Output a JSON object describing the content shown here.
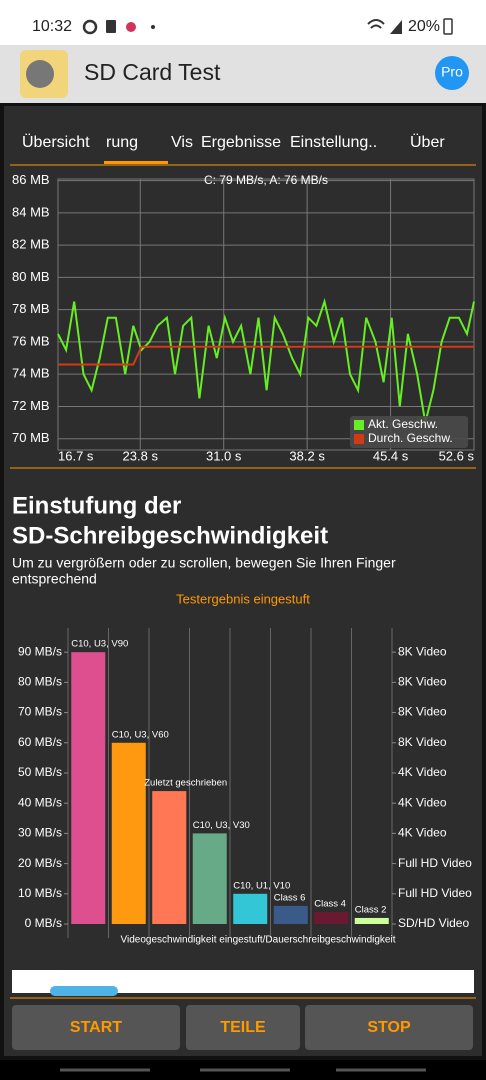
{
  "status_bar": {
    "time": "10:32",
    "battery": "20%"
  },
  "app_bar": {
    "title": "SD Card Test",
    "pro": "Pro"
  },
  "tabs": [
    "Übersicht",
    "rung",
    "Vis",
    "Ergebnisse",
    "Einstellung..",
    "Über"
  ],
  "section": {
    "heading": [
      "Einstufung der",
      "SD-Schreibgeschwindigkeit"
    ],
    "hint": [
      "Um zu vergrößern oder zu scrollen, bewegen Sie Ihren Finger",
      "entsprechend"
    ]
  },
  "buttons": [
    "START",
    "TEILE",
    "STOP"
  ],
  "chart_data": [
    {
      "type": "line",
      "annotation": "C: 79 MB/s, A: 76 MB/s",
      "x": [
        16.7,
        17.4,
        18.1,
        18.9,
        19.6,
        20.3,
        21.0,
        21.7,
        22.5,
        23.2,
        23.9,
        24.6,
        25.3,
        26.1,
        26.8,
        27.5,
        28.2,
        28.9,
        29.7,
        30.4,
        31.1,
        31.8,
        32.5,
        33.3,
        34.0,
        34.7,
        35.4,
        36.1,
        36.9,
        37.6,
        38.3,
        39.0,
        39.7,
        40.5,
        41.2,
        41.9,
        42.6,
        43.3,
        44.1,
        44.8,
        45.5,
        46.2,
        46.9,
        47.7,
        48.4,
        49.1,
        49.8,
        50.5,
        51.3,
        52.0,
        52.6
      ],
      "series": [
        {
          "name": "Akt. Geschw.",
          "color": "#66ee22",
          "values": [
            76.5,
            75.5,
            78.5,
            74,
            73,
            75,
            77.5,
            77.5,
            74,
            77,
            75.5,
            76,
            77,
            77.5,
            74,
            77,
            77.5,
            72.5,
            77,
            75,
            77.5,
            76,
            77,
            74,
            77.5,
            73,
            77.5,
            76.5,
            75,
            74,
            77.5,
            77,
            78.5,
            76,
            77.5,
            74,
            73,
            77.5,
            76,
            73.5,
            77.5,
            72,
            76.5,
            74,
            71,
            73,
            76,
            77.5,
            77.5,
            76.5,
            78.5
          ]
        },
        {
          "name": "Durch. Geschw.",
          "color": "#d23a16",
          "values": [
            74.6,
            74.6,
            74.6,
            74.6,
            74.6,
            74.6,
            74.6,
            74.6,
            74.6,
            74.6,
            75.7,
            75.7,
            75.7,
            75.7,
            75.7,
            75.7,
            75.7,
            75.7,
            75.7,
            75.7,
            75.7,
            75.7,
            75.7,
            75.7,
            75.7,
            75.7,
            75.7,
            75.7,
            75.7,
            75.7,
            75.7,
            75.7,
            75.7,
            75.7,
            75.7,
            75.7,
            75.7,
            75.7,
            75.7,
            75.7,
            75.7,
            75.7,
            75.7,
            75.7,
            75.7,
            75.7,
            75.7,
            75.7,
            75.7,
            75.7,
            75.7
          ]
        }
      ],
      "xlim": [
        16.7,
        52.6
      ],
      "xticks": [
        {
          "value": 16.7,
          "label": "16.7 s"
        },
        {
          "value": 23.8,
          "label": "23.8 s"
        },
        {
          "value": 31.0,
          "label": "31.0 s"
        },
        {
          "value": 38.2,
          "label": "38.2 s"
        },
        {
          "value": 45.4,
          "label": "45.4 s"
        },
        {
          "value": 52.6,
          "label": "52.6 s"
        }
      ],
      "ylim": [
        69.3,
        86.1
      ],
      "yticks": [
        {
          "value": 86,
          "label": "86 MB"
        },
        {
          "value": 84,
          "label": "84 MB"
        },
        {
          "value": 82,
          "label": "82 MB"
        },
        {
          "value": 80,
          "label": "80 MB"
        },
        {
          "value": 78,
          "label": "78 MB"
        },
        {
          "value": 76,
          "label": "76 MB"
        },
        {
          "value": 74,
          "label": "74 MB"
        },
        {
          "value": 72,
          "label": "72 MB"
        },
        {
          "value": 70,
          "label": "70 MB"
        }
      ],
      "grid": true,
      "legend": "bottom-right"
    },
    {
      "type": "bar",
      "title": "Testergebnis eingestuft",
      "x_label": "Videogeschwindigkeit eingestuft/Dauerschreibgeschwindigkeit",
      "categories": [
        "C10, U3, V90",
        "C10, U3, V60",
        "Zuletzt geschrieben",
        "C10, U3, V30",
        "C10, U1, V10",
        "Class 6",
        "Class 4",
        "Class 2"
      ],
      "values": [
        90,
        60,
        44,
        30,
        10,
        6,
        4,
        2
      ],
      "colors": [
        "#dd4f8e",
        "#ff9910",
        "#ff7755",
        "#66aa88",
        "#33c6d6",
        "#3a5a8a",
        "#6a1a30",
        "#ccff99"
      ],
      "ylim": [
        0,
        98
      ],
      "yticks": [
        {
          "value": 90,
          "label": "90 MB/s"
        },
        {
          "value": 80,
          "label": "80 MB/s"
        },
        {
          "value": 70,
          "label": "70 MB/s"
        },
        {
          "value": 60,
          "label": "60 MB/s"
        },
        {
          "value": 50,
          "label": "50 MB/s"
        },
        {
          "value": 40,
          "label": "40 MB/s"
        },
        {
          "value": 30,
          "label": "30 MB/s"
        },
        {
          "value": 20,
          "label": "20 MB/s"
        },
        {
          "value": 10,
          "label": "10 MB/s"
        },
        {
          "value": 0,
          "label": "0 MB/s"
        }
      ],
      "y2lim": [
        0,
        98
      ],
      "y2ticks": [
        {
          "value": 90,
          "label": "8K Video"
        },
        {
          "value": 80,
          "label": "8K Video"
        },
        {
          "value": 70,
          "label": "8K Video"
        },
        {
          "value": 60,
          "label": "8K Video"
        },
        {
          "value": 50,
          "label": "4K Video"
        },
        {
          "value": 40,
          "label": "4K Video"
        },
        {
          "value": 30,
          "label": "4K Video"
        },
        {
          "value": 20,
          "label": "Full HD Video"
        },
        {
          "value": 10,
          "label": "Full HD Video"
        },
        {
          "value": 0,
          "label": "SD/HD Video"
        }
      ]
    }
  ]
}
